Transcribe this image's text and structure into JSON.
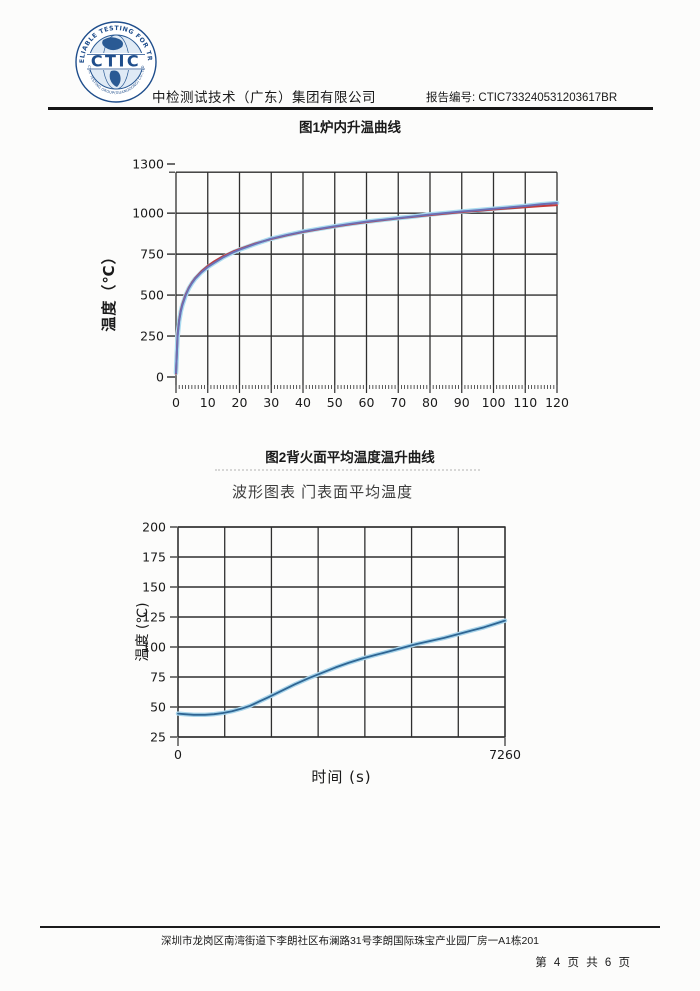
{
  "header": {
    "logo": {
      "acronym": "CTIC",
      "ring_text_top": "A RELIABLE TESTING FOR TRUST",
      "ring_text_bottom": "CTIC TESTING GROUP(GUANGDONG) CO.,LTD",
      "brand_color": "#1f4e8c"
    },
    "company": "中检测试技术（广东）集团有限公司",
    "report_no_label": "报告编号:",
    "report_no": "CTIC733240531203617BR"
  },
  "figure1": {
    "caption": "图1炉内升温曲线"
  },
  "figure2": {
    "caption": "图2背火面平均温度温升曲线",
    "chart_title": "波形图表 门表面平均温度"
  },
  "footer": {
    "address": "深圳市龙岗区南湾街道下李朗社区布澜路31号李朗国际珠宝产业园厂房一A1栋201",
    "page_info": "第 4 页 共 6 页"
  },
  "chart_data": [
    {
      "type": "line",
      "title": "图1炉内升温曲线",
      "xlabel": "",
      "ylabel": "温度（℃）",
      "xlim": [
        0,
        120
      ],
      "ylim": [
        0,
        1300
      ],
      "grid": true,
      "legend": "none",
      "x_ticks": [
        0,
        10,
        20,
        30,
        40,
        50,
        60,
        70,
        80,
        90,
        100,
        110,
        120
      ],
      "x_minor_tick_step": 1,
      "y_gridlines": [
        250,
        500,
        750,
        1000,
        1250
      ],
      "y_ticks": [
        {
          "v": 0,
          "label": "0"
        },
        {
          "v": 250,
          "label": "250"
        },
        {
          "v": 500,
          "label": "500"
        },
        {
          "v": 750,
          "label": "750"
        },
        {
          "v": 1000,
          "label": "1000"
        },
        {
          "v": 1300,
          "label": "1300"
        }
      ],
      "grid_color": "#2f2f2f",
      "series": [
        {
          "name": "red_curve",
          "color": "#c23b3b",
          "width": 2,
          "x": [
            0,
            0.5,
            1,
            1.5,
            2,
            3,
            4,
            5,
            6,
            8,
            10,
            12,
            15,
            18,
            20,
            25,
            30,
            35,
            40,
            45,
            50,
            55,
            60,
            65,
            70,
            75,
            80,
            85,
            90,
            95,
            100,
            105,
            110,
            115,
            120
          ],
          "y": [
            20,
            261,
            349,
            407,
            445,
            502,
            544,
            576,
            603,
            645,
            678,
            705,
            739,
            766,
            781,
            815,
            842,
            865,
            885,
            902,
            918,
            932,
            945,
            957,
            968,
            978,
            988,
            997,
            1006,
            1014,
            1022,
            1029,
            1036,
            1043,
            1049
          ]
        },
        {
          "name": "blue_curve",
          "color": "#6b6fb5",
          "halo": "#aadcf0",
          "width": 2,
          "x": [
            0,
            0.5,
            1,
            1.5,
            2,
            3,
            4,
            5,
            6,
            8,
            10,
            12,
            15,
            18,
            20,
            25,
            30,
            35,
            40,
            45,
            50,
            55,
            60,
            65,
            70,
            75,
            80,
            85,
            90,
            95,
            100,
            105,
            110,
            115,
            120
          ],
          "y": [
            25,
            248,
            342,
            399,
            438,
            496,
            540,
            572,
            599,
            639,
            671,
            696,
            732,
            761,
            777,
            812,
            844,
            867,
            887,
            904,
            920,
            935,
            948,
            959,
            970,
            980,
            992,
            1001,
            1010,
            1018,
            1027,
            1035,
            1044,
            1054,
            1062
          ]
        }
      ]
    },
    {
      "type": "line",
      "title": "波形图表 门表面平均温度",
      "xlabel": "时间 (s)",
      "ylabel": "温度 (℃)",
      "xlim": [
        0,
        7260
      ],
      "ylim": [
        25,
        200
      ],
      "grid": true,
      "legend": "none",
      "x_gridline_count": 7,
      "x_ticks": [
        {
          "v": 0,
          "label": "0"
        },
        {
          "v": 7260,
          "label": "7260"
        }
      ],
      "y_tick_step": 25,
      "y_ticks": [
        {
          "v": 25,
          "label": "25"
        },
        {
          "v": 50,
          "label": "50"
        },
        {
          "v": 75,
          "label": "75"
        },
        {
          "v": 100,
          "label": "100"
        },
        {
          "v": 125,
          "label": "125"
        },
        {
          "v": 150,
          "label": "150"
        },
        {
          "v": 175,
          "label": "175"
        },
        {
          "v": 200,
          "label": "200"
        }
      ],
      "grid_color": "#2f2f2f",
      "series": [
        {
          "name": "door_surface_avg_temp",
          "color": "#2e6593",
          "halo": "#a8d4ea",
          "width": 1.8,
          "x": [
            0,
            150,
            350,
            600,
            800,
            1000,
            1200,
            1400,
            1600,
            1800,
            2000,
            2300,
            2600,
            2900,
            3200,
            3500,
            3800,
            4100,
            4400,
            4700,
            5000,
            5300,
            5600,
            5900,
            6200,
            6500,
            6800,
            7050,
            7260
          ],
          "y": [
            44.5,
            44,
            43.5,
            43.5,
            44,
            45,
            46.5,
            48.5,
            51,
            54.5,
            58,
            63.5,
            69,
            74,
            78.5,
            83,
            87,
            90.5,
            93.5,
            96.5,
            99.5,
            102.5,
            105,
            107.5,
            110.5,
            113.5,
            116.5,
            119.5,
            122
          ]
        }
      ]
    }
  ]
}
